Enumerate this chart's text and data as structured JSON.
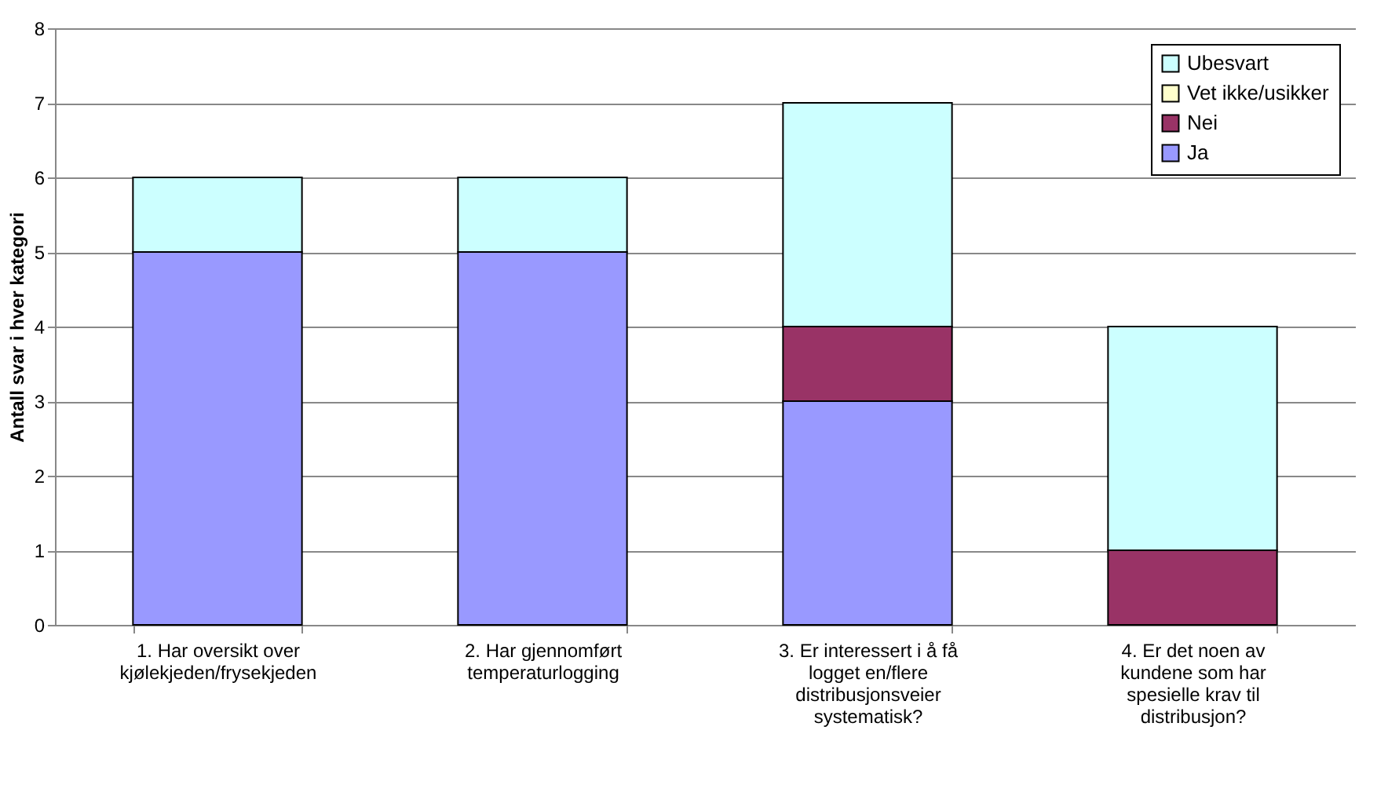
{
  "chart_data": {
    "type": "bar",
    "stacked": true,
    "ylabel": "Antall svar i hver kategori",
    "categories": [
      "1. Har oversikt over kjølekjeden/frysekjeden",
      "2. Har gjennomført temperaturlogging",
      "3. Er interessert i å få logget en/flere distribusjonsveier systematisk?",
      "4. Er det noen av kundene som har spesielle krav til distribusjon?"
    ],
    "series": [
      {
        "name": "Ja",
        "color": "#9999ff",
        "values": [
          5,
          5,
          3,
          0
        ]
      },
      {
        "name": "Nei",
        "color": "#993366",
        "values": [
          0,
          0,
          1,
          1
        ]
      },
      {
        "name": "Vet ikke/usikker",
        "color": "#ffffcc",
        "values": [
          0,
          0,
          0,
          0
        ]
      },
      {
        "name": "Ubesvart",
        "color": "#ccffff",
        "values": [
          1,
          1,
          3,
          3
        ]
      }
    ],
    "ylim": [
      0,
      8
    ],
    "yticks": [
      0,
      1,
      2,
      3,
      4,
      5,
      6,
      7,
      8
    ],
    "grid": "y",
    "legend": "top right"
  }
}
